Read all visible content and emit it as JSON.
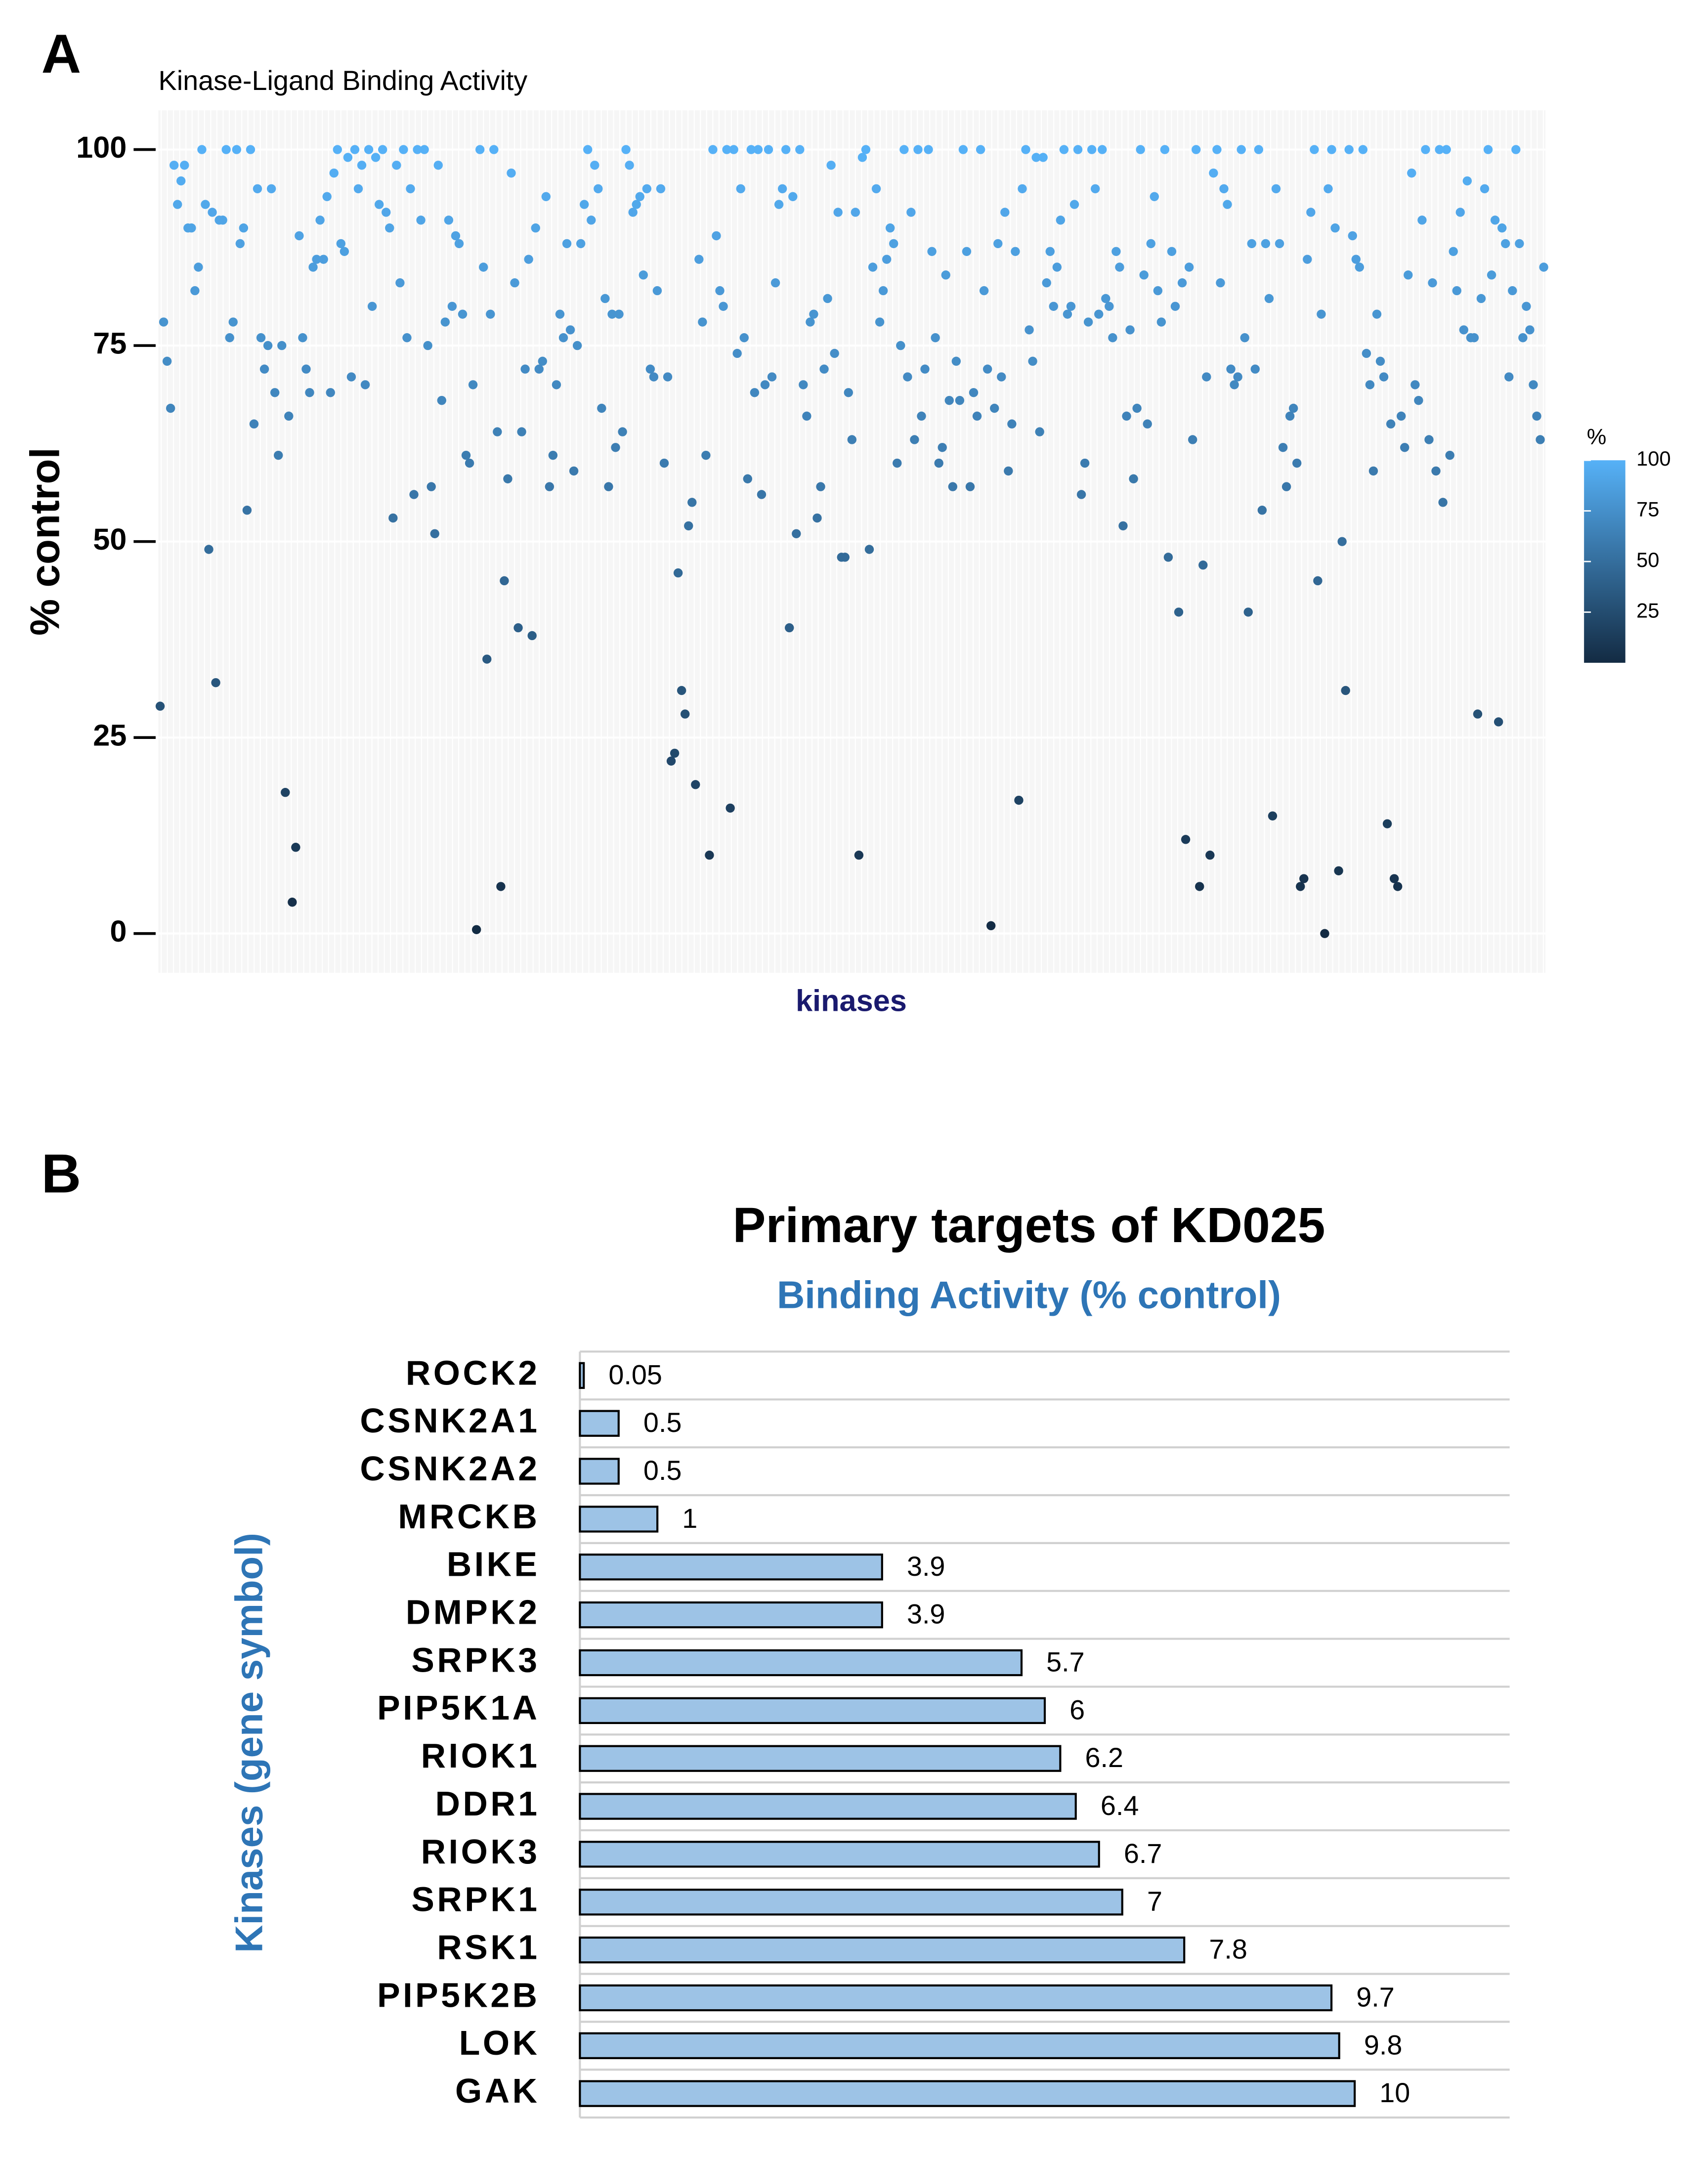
{
  "chart_data": [
    {
      "type": "strip",
      "label": "A",
      "title": "Kinase-Ligand Binding Activity",
      "ylabel": "% control",
      "xlabel": "kinases",
      "ylim": [
        -5,
        105
      ],
      "yticks": [
        0,
        25,
        50,
        75,
        100
      ],
      "grid": true,
      "colorscale": {
        "title": "%",
        "low": "#132B43",
        "high": "#56B1F7",
        "lim": [
          0,
          100
        ],
        "ticks": [
          25,
          50,
          75,
          100
        ]
      },
      "values": [
        29,
        78,
        73,
        67,
        98,
        93,
        96,
        98,
        90,
        90,
        82,
        85,
        100,
        93,
        49,
        92,
        32,
        91,
        91,
        100,
        76,
        78,
        100,
        88,
        90,
        54,
        100,
        65,
        95,
        76,
        72,
        75,
        95,
        69,
        61,
        75,
        18,
        66,
        4,
        11,
        89,
        76,
        72,
        69,
        85,
        86,
        91,
        86,
        94,
        69,
        97,
        100,
        88,
        87,
        99,
        71,
        100,
        95,
        98,
        70,
        100,
        80,
        99,
        93,
        100,
        92,
        90,
        53,
        98,
        83,
        100,
        76,
        95,
        56,
        100,
        91,
        100,
        75,
        57,
        51,
        98,
        68,
        78,
        91,
        80,
        89,
        88,
        79,
        61,
        60,
        70,
        0.5,
        100,
        85,
        35,
        79,
        100,
        64,
        6,
        45,
        58,
        97,
        83,
        39,
        64,
        72,
        86,
        38,
        90,
        72,
        73,
        94,
        57,
        61,
        70,
        79,
        76,
        88,
        77,
        59,
        75,
        88,
        93,
        100,
        91,
        98,
        95,
        67,
        81,
        57,
        79,
        62,
        79,
        64,
        100,
        98,
        92,
        93,
        94,
        84,
        95,
        72,
        71,
        82,
        95,
        60,
        71,
        22,
        23,
        46,
        31,
        28,
        52,
        55,
        19,
        86,
        78,
        61,
        10,
        100,
        89,
        82,
        80,
        100,
        16,
        100,
        74,
        95,
        76,
        58,
        100,
        69,
        100,
        56,
        70,
        100,
        71,
        83,
        93,
        95,
        100,
        39,
        94,
        51,
        100,
        70,
        66,
        78,
        79,
        53,
        57,
        72,
        81,
        98,
        74,
        92,
        48,
        48,
        69,
        63,
        92,
        10,
        99,
        100,
        49,
        85,
        95,
        78,
        82,
        86,
        90,
        88,
        60,
        75,
        100,
        71,
        92,
        63,
        100,
        66,
        72,
        100,
        87,
        76,
        60,
        62,
        84,
        68,
        57,
        73,
        68,
        100,
        87,
        57,
        69,
        66,
        100,
        82,
        72,
        1,
        67,
        88,
        71,
        92,
        59,
        65,
        87,
        17,
        95,
        100,
        77,
        73,
        99,
        64,
        99,
        83,
        87,
        80,
        85,
        91,
        100,
        79,
        80,
        93,
        100,
        56,
        60,
        78,
        100,
        95,
        79,
        100,
        81,
        80,
        76,
        87,
        85,
        52,
        66,
        77,
        58,
        67,
        100,
        84,
        65,
        88,
        94,
        82,
        78,
        100,
        48,
        87,
        80,
        41,
        83,
        12,
        85,
        63,
        100,
        6,
        47,
        71,
        10,
        97,
        100,
        83,
        95,
        93,
        72,
        70,
        71,
        100,
        76,
        41,
        88,
        72,
        100,
        54,
        88,
        81,
        15,
        95,
        88,
        62,
        57,
        66,
        67,
        60,
        6,
        7,
        86,
        92,
        100,
        45,
        79,
        0,
        95,
        100,
        90,
        8,
        50,
        31,
        100,
        89,
        86,
        85,
        100,
        74,
        70,
        59,
        79,
        73,
        71,
        14,
        65,
        7,
        6,
        66,
        62,
        84,
        97,
        70,
        68,
        91,
        100,
        63,
        83,
        59,
        100,
        55,
        100,
        61,
        87,
        82,
        92,
        77,
        96,
        76,
        76,
        28,
        81,
        95,
        100,
        84,
        91,
        27,
        90,
        88,
        71,
        82,
        100,
        88,
        76,
        80,
        77,
        70,
        66,
        63,
        85
      ]
    },
    {
      "type": "hbar",
      "label": "B",
      "title": "Primary targets of KD025",
      "subtitle": "Binding Activity (% control)",
      "ylabel": "Kinases (gene symbol)",
      "xlim": [
        0,
        12
      ],
      "color": "#9dc3e6",
      "grid": true,
      "categories": [
        "ROCK2",
        "CSNK2A1",
        "CSNK2A2",
        "MRCKB",
        "BIKE",
        "DMPK2",
        "SRPK3",
        "PIP5K1A",
        "RIOK1",
        "DDR1",
        "RIOK3",
        "SRPK1",
        "RSK1",
        "PIP5K2B",
        "LOK",
        "GAK"
      ],
      "values": [
        0.05,
        0.5,
        0.5,
        1,
        3.9,
        3.9,
        5.7,
        6,
        6.2,
        6.4,
        6.7,
        7,
        7.8,
        9.7,
        9.8,
        10
      ]
    }
  ]
}
